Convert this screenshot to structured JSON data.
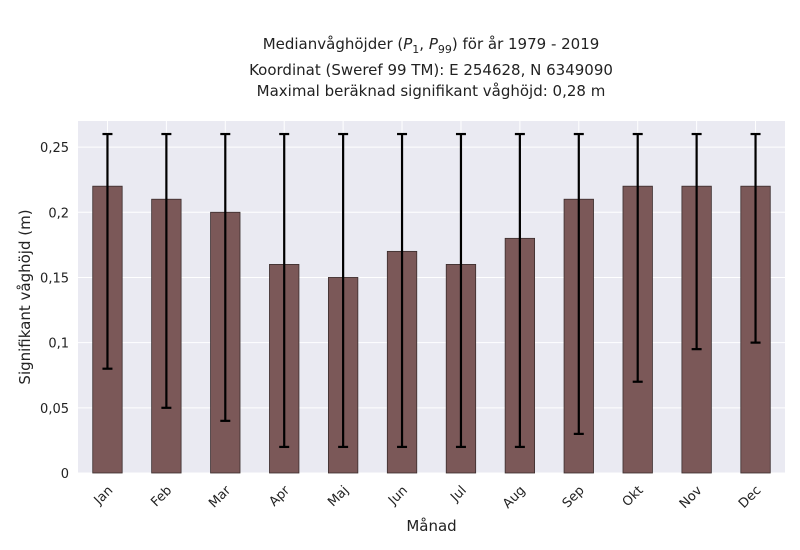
{
  "title": {
    "line1_prefix": "Medianvåghöjder (",
    "p1_main": "P",
    "p1_sub": "1",
    "sep": ", ",
    "p99_main": "P",
    "p99_sub": "99",
    "line1_suffix": ") för år 1979 - 2019",
    "line2": "Koordinat (Sweref 99 TM): E 254628, N 6349090",
    "line3": "Maximal beräknad signifikant våghöjd: 0,28 m"
  },
  "chart_data": {
    "type": "bar",
    "categories": [
      "Jan",
      "Feb",
      "Mar",
      "Apr",
      "Maj",
      "Jun",
      "Jul",
      "Aug",
      "Sep",
      "Okt",
      "Nov",
      "Dec"
    ],
    "values": [
      0.22,
      0.21,
      0.2,
      0.16,
      0.15,
      0.17,
      0.16,
      0.18,
      0.21,
      0.22,
      0.22,
      0.22
    ],
    "error_low": [
      0.08,
      0.05,
      0.04,
      0.02,
      0.02,
      0.02,
      0.02,
      0.02,
      0.03,
      0.07,
      0.095,
      0.1
    ],
    "error_high": [
      0.26,
      0.26,
      0.26,
      0.26,
      0.26,
      0.26,
      0.26,
      0.26,
      0.26,
      0.26,
      0.26,
      0.26
    ],
    "xlabel": "Månad",
    "ylabel": "Signifikant våghöjd (m)",
    "ylim": [
      0,
      0.27
    ],
    "yticks": [
      0,
      0.05,
      0.1,
      0.15,
      0.2,
      0.25
    ],
    "ytick_labels": [
      "0",
      "0,05",
      "0,1",
      "0,15",
      "0,2",
      "0,25"
    ],
    "grid": true,
    "colors": {
      "bar": "#7b5858",
      "bar_edge": "#3a2c2c",
      "error": "#000000",
      "background": "#eaeaf2",
      "grid": "#ffffff"
    }
  }
}
